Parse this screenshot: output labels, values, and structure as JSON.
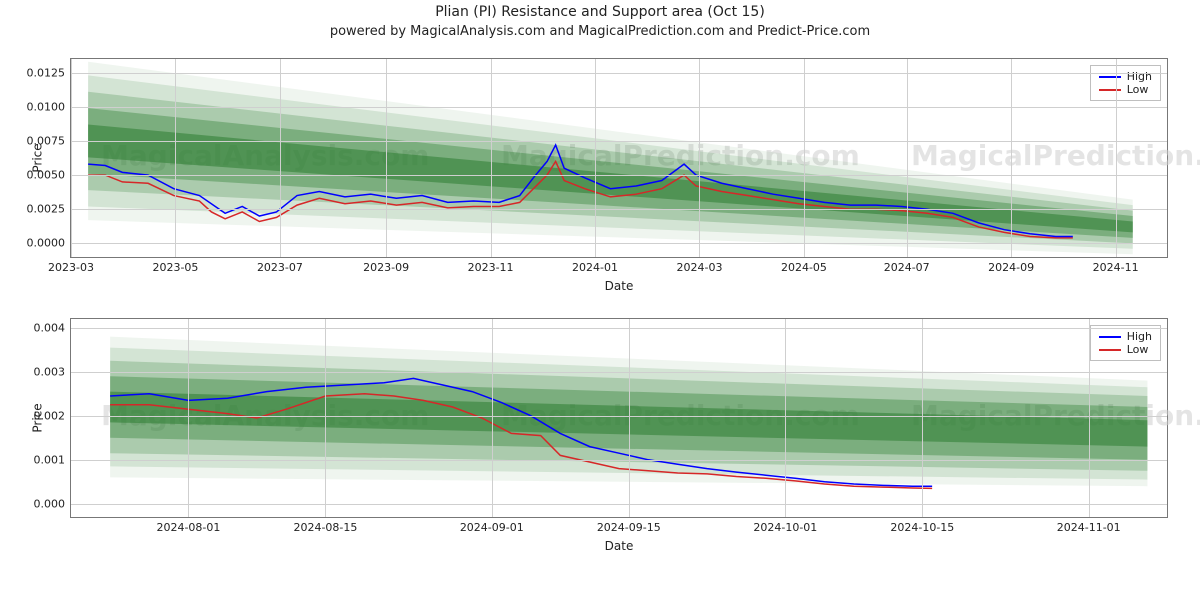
{
  "title": "Plian (PI) Resistance and Support area (Oct 15)",
  "subtitle": "powered by MagicalAnalysis.com and MagicalPrediction.com and Predict-Price.com",
  "watermark_texts": [
    "MagicalAnalysis.com",
    "MagicalPrediction.com"
  ],
  "colors": {
    "high_line": "#0000ff",
    "low_line": "#d62728",
    "fan_core": "#2e7d32",
    "fan_alpha_steps": [
      0.55,
      0.38,
      0.24,
      0.14,
      0.08
    ],
    "grid": "#cfcfcf",
    "axis": "#777777",
    "text": "#222222",
    "bg": "#ffffff"
  },
  "legend": {
    "high": "High",
    "low": "Low"
  },
  "panel_top": {
    "type": "line",
    "ylabel": "Price",
    "xlabel": "Date",
    "x_range_days": 640,
    "y_range": [
      -0.001,
      0.0135
    ],
    "yticks": [
      0.0,
      0.0025,
      0.005,
      0.0075,
      0.01,
      0.0125
    ],
    "ytick_labels": [
      "0.0000",
      "0.0025",
      "0.0050",
      "0.0075",
      "0.0100",
      "0.0125"
    ],
    "xticks_dayidx": [
      0,
      61,
      122,
      184,
      245,
      306,
      367,
      428,
      488,
      549,
      610
    ],
    "xtick_labels": [
      "2023-03",
      "2023-05",
      "2023-07",
      "2023-09",
      "2023-11",
      "2024-01",
      "2024-03",
      "2024-05",
      "2024-07",
      "2024-09",
      "2024-11"
    ],
    "fan": {
      "start_day": 10,
      "end_day": 620,
      "center_start": 0.0075,
      "center_end": 0.0012,
      "half_widths_start": [
        0.0012,
        0.0024,
        0.0036,
        0.0048,
        0.0058
      ],
      "half_widths_end": [
        0.0004,
        0.0008,
        0.0012,
        0.0016,
        0.002
      ]
    },
    "series_high": [
      [
        10,
        0.0058
      ],
      [
        20,
        0.0057
      ],
      [
        30,
        0.0052
      ],
      [
        45,
        0.005
      ],
      [
        60,
        0.004
      ],
      [
        75,
        0.0035
      ],
      [
        90,
        0.0022
      ],
      [
        100,
        0.0027
      ],
      [
        110,
        0.002
      ],
      [
        120,
        0.0023
      ],
      [
        132,
        0.0035
      ],
      [
        145,
        0.0038
      ],
      [
        160,
        0.0034
      ],
      [
        175,
        0.0036
      ],
      [
        190,
        0.0033
      ],
      [
        205,
        0.0035
      ],
      [
        220,
        0.003
      ],
      [
        235,
        0.0031
      ],
      [
        250,
        0.003
      ],
      [
        262,
        0.0035
      ],
      [
        270,
        0.0048
      ],
      [
        278,
        0.006
      ],
      [
        283,
        0.0072
      ],
      [
        288,
        0.0055
      ],
      [
        300,
        0.0048
      ],
      [
        315,
        0.004
      ],
      [
        330,
        0.0042
      ],
      [
        345,
        0.0046
      ],
      [
        358,
        0.0058
      ],
      [
        365,
        0.005
      ],
      [
        380,
        0.0044
      ],
      [
        395,
        0.004
      ],
      [
        410,
        0.0036
      ],
      [
        425,
        0.0033
      ],
      [
        440,
        0.003
      ],
      [
        455,
        0.0028
      ],
      [
        470,
        0.0028
      ],
      [
        485,
        0.0027
      ],
      [
        500,
        0.0025
      ],
      [
        515,
        0.0022
      ],
      [
        530,
        0.0015
      ],
      [
        545,
        0.001
      ],
      [
        560,
        0.0007
      ],
      [
        575,
        0.0005
      ],
      [
        585,
        0.0005
      ]
    ],
    "series_low": [
      [
        10,
        0.005
      ],
      [
        20,
        0.005
      ],
      [
        30,
        0.0045
      ],
      [
        45,
        0.0044
      ],
      [
        60,
        0.0035
      ],
      [
        75,
        0.0031
      ],
      [
        82,
        0.0023
      ],
      [
        90,
        0.0018
      ],
      [
        100,
        0.0023
      ],
      [
        110,
        0.0016
      ],
      [
        120,
        0.0019
      ],
      [
        132,
        0.0028
      ],
      [
        145,
        0.0033
      ],
      [
        160,
        0.0029
      ],
      [
        175,
        0.0031
      ],
      [
        190,
        0.0028
      ],
      [
        205,
        0.003
      ],
      [
        220,
        0.0026
      ],
      [
        235,
        0.0027
      ],
      [
        250,
        0.0027
      ],
      [
        262,
        0.003
      ],
      [
        270,
        0.004
      ],
      [
        278,
        0.005
      ],
      [
        283,
        0.006
      ],
      [
        288,
        0.0046
      ],
      [
        300,
        0.004
      ],
      [
        315,
        0.0034
      ],
      [
        330,
        0.0036
      ],
      [
        345,
        0.004
      ],
      [
        358,
        0.005
      ],
      [
        365,
        0.0042
      ],
      [
        380,
        0.0038
      ],
      [
        395,
        0.0035
      ],
      [
        410,
        0.0032
      ],
      [
        425,
        0.0029
      ],
      [
        440,
        0.0027
      ],
      [
        455,
        0.0025
      ],
      [
        470,
        0.0025
      ],
      [
        485,
        0.0024
      ],
      [
        500,
        0.0022
      ],
      [
        515,
        0.0019
      ],
      [
        530,
        0.0012
      ],
      [
        545,
        0.0008
      ],
      [
        560,
        0.0005
      ],
      [
        575,
        0.0004
      ],
      [
        585,
        0.0004
      ]
    ]
  },
  "panel_bot": {
    "type": "line",
    "ylabel": "Price",
    "xlabel": "Date",
    "x_range_days": 112,
    "y_range": [
      -0.0003,
      0.0042
    ],
    "yticks": [
      0.0,
      0.001,
      0.002,
      0.003,
      0.004
    ],
    "ytick_labels": [
      "0.000",
      "0.001",
      "0.002",
      "0.003",
      "0.004"
    ],
    "xticks_dayidx": [
      12,
      26,
      43,
      57,
      73,
      87,
      104
    ],
    "xtick_labels": [
      "2024-08-01",
      "2024-08-15",
      "2024-09-01",
      "2024-09-15",
      "2024-10-01",
      "2024-10-15",
      "2024-11-01"
    ],
    "fan": {
      "start_day": 4,
      "end_day": 110,
      "center_start": 0.0022,
      "center_end": 0.0016,
      "half_widths_start": [
        0.00035,
        0.0007,
        0.00105,
        0.00135,
        0.0016
      ],
      "half_widths_end": [
        0.0003,
        0.0006,
        0.00085,
        0.00105,
        0.0012
      ]
    },
    "series_high": [
      [
        4,
        0.00245
      ],
      [
        8,
        0.0025
      ],
      [
        12,
        0.00235
      ],
      [
        16,
        0.0024
      ],
      [
        20,
        0.00255
      ],
      [
        24,
        0.00265
      ],
      [
        28,
        0.0027
      ],
      [
        32,
        0.00275
      ],
      [
        35,
        0.00285
      ],
      [
        38,
        0.0027
      ],
      [
        41,
        0.00255
      ],
      [
        44,
        0.0023
      ],
      [
        47,
        0.002
      ],
      [
        50,
        0.0016
      ],
      [
        53,
        0.0013
      ],
      [
        56,
        0.00115
      ],
      [
        59,
        0.001
      ],
      [
        62,
        0.0009
      ],
      [
        65,
        0.0008
      ],
      [
        68,
        0.00072
      ],
      [
        71,
        0.00065
      ],
      [
        74,
        0.00058
      ],
      [
        77,
        0.0005
      ],
      [
        80,
        0.00045
      ],
      [
        83,
        0.00042
      ],
      [
        86,
        0.0004
      ],
      [
        88,
        0.0004
      ]
    ],
    "series_low": [
      [
        4,
        0.00225
      ],
      [
        8,
        0.00225
      ],
      [
        12,
        0.00215
      ],
      [
        16,
        0.00205
      ],
      [
        19,
        0.00195
      ],
      [
        22,
        0.00215
      ],
      [
        26,
        0.00245
      ],
      [
        30,
        0.0025
      ],
      [
        33,
        0.00245
      ],
      [
        36,
        0.00235
      ],
      [
        39,
        0.0022
      ],
      [
        42,
        0.00195
      ],
      [
        45,
        0.0016
      ],
      [
        48,
        0.00155
      ],
      [
        50,
        0.0011
      ],
      [
        53,
        0.00095
      ],
      [
        56,
        0.0008
      ],
      [
        59,
        0.00075
      ],
      [
        62,
        0.0007
      ],
      [
        65,
        0.00068
      ],
      [
        68,
        0.00062
      ],
      [
        71,
        0.00058
      ],
      [
        74,
        0.00052
      ],
      [
        77,
        0.00045
      ],
      [
        80,
        0.0004
      ],
      [
        83,
        0.00038
      ],
      [
        86,
        0.00036
      ],
      [
        88,
        0.00035
      ]
    ]
  }
}
